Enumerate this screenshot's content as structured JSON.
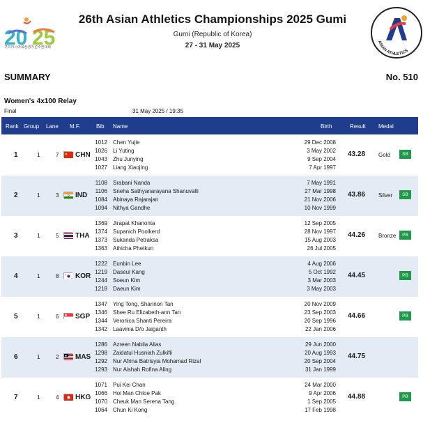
{
  "header": {
    "title": "26th Asian Athletics Championships 2025 Gumi",
    "venue": "Gumi (Republic of Korea)",
    "dates": "27 - 31 May 2025",
    "left_logo_caption": "구미아시아육상경기선수권대회",
    "right_logo_text": "ASIAN ATHLETICS"
  },
  "report": {
    "type": "SUMMARY",
    "number": "No. 510",
    "event": "Women's 4x100 Relay",
    "round": "Final",
    "datetime": "31 May 2025 / 19:35"
  },
  "columns": {
    "rank": "Rank",
    "group": "Group",
    "lane": "Lane",
    "mf": "M.F.",
    "bib": "Bib",
    "name": "Name",
    "birth": "Birth",
    "result": "Result",
    "medal": "Medal"
  },
  "rows": [
    {
      "rank": "1",
      "group": "1",
      "lane": "7",
      "noc": "CHN",
      "result": "43.28",
      "medal": "Gold",
      "badge": "SB",
      "athletes": [
        {
          "bib": "1012",
          "name": "Chen Yujie",
          "birth": "29 Dec 2008"
        },
        {
          "bib": "1026",
          "name": "Li Yuting",
          "birth": "3 May 2002"
        },
        {
          "bib": "1043",
          "name": "Zhu Junying",
          "birth": "9 Sep 2004"
        },
        {
          "bib": "1027",
          "name": "Liang Xiaojing",
          "birth": "7 Apr 1997"
        }
      ]
    },
    {
      "rank": "2",
      "group": "1",
      "lane": "3",
      "noc": "IND",
      "result": "43.86",
      "medal": "Silver",
      "badge": "SB",
      "athletes": [
        {
          "bib": "1108",
          "name": "Srabani Nanda",
          "birth": "7 May 1991"
        },
        {
          "bib": "1106",
          "name": "Sneha Sathyanarayana Shanuvalli",
          "birth": "27 Mar 1998"
        },
        {
          "bib": "1084",
          "name": "Abinaya Rajarajan",
          "birth": "21 Nov 2006"
        },
        {
          "bib": "1094",
          "name": "Nithya Gandhe",
          "birth": "10 Nov 1999"
        }
      ]
    },
    {
      "rank": "3",
      "group": "1",
      "lane": "5",
      "noc": "THA",
      "result": "44.26",
      "medal": "Bronze",
      "badge": "PB",
      "athletes": [
        {
          "bib": "1369",
          "name": "Jirapat Khanonta",
          "birth": "12 Sep 2005"
        },
        {
          "bib": "1374",
          "name": "Supanich Poolkerd",
          "birth": "28 Nov 1997"
        },
        {
          "bib": "1373",
          "name": "Sukanda Petraksa",
          "birth": "15 Aug 2003"
        },
        {
          "bib": "1363",
          "name": "Athicha Phetkun",
          "birth": "26 Jul 2005"
        }
      ]
    },
    {
      "rank": "4",
      "group": "1",
      "lane": "8",
      "noc": "KOR",
      "result": "44.45",
      "medal": "",
      "badge": "PB",
      "athletes": [
        {
          "bib": "1222",
          "name": "Eunbin Lee",
          "birth": "4 Aug 2006"
        },
        {
          "bib": "1219",
          "name": "Daseul Kang",
          "birth": "5 Oct 1992"
        },
        {
          "bib": "1244",
          "name": "Soeun Kim",
          "birth": "3 Mar 2003"
        },
        {
          "bib": "1218",
          "name": "Daeun Kim",
          "birth": "3 May 2003"
        }
      ]
    },
    {
      "rank": "5",
      "group": "1",
      "lane": "6",
      "noc": "SGP",
      "result": "44.66",
      "medal": "",
      "badge": "PB",
      "athletes": [
        {
          "bib": "1347",
          "name": "Ying Tong, Shannon Tan",
          "birth": "20 Nov 2009"
        },
        {
          "bib": "1346",
          "name": "Shee Ru Elizabeth-ann Tan",
          "birth": "23 Sep 2003"
        },
        {
          "bib": "1344",
          "name": "Veronica Shanti Pereira",
          "birth": "20 Sep 1996"
        },
        {
          "bib": "1342",
          "name": "Laavinia D/o Jaiganth",
          "birth": "22 Jan 2006"
        }
      ]
    },
    {
      "rank": "6",
      "group": "1",
      "lane": "2",
      "noc": "MAS",
      "result": "44.75",
      "medal": "",
      "badge": "",
      "athletes": [
        {
          "bib": "1286",
          "name": "Azreen Nabila Alias",
          "birth": "29 Jun 2000"
        },
        {
          "bib": "1298",
          "name": "Zaidatul Husniah Zulkifli",
          "birth": "20 Aug 1993"
        },
        {
          "bib": "1292",
          "name": "Nur Afrina Batrisyia Mohamad Rizal",
          "birth": "20 Sep 2004"
        },
        {
          "bib": "1293",
          "name": "Nur Aishah Rofina Aling",
          "birth": "31 Jan 1999"
        }
      ]
    },
    {
      "rank": "7",
      "group": "1",
      "lane": "4",
      "noc": "HKG",
      "result": "44.88",
      "medal": "",
      "badge": "PB",
      "athletes": [
        {
          "bib": "1071",
          "name": "Pui Kei Chan",
          "birth": "24 Mar 2000"
        },
        {
          "bib": "1066",
          "name": "Hoi Man Chloe Pak",
          "birth": "9 Apr 2006"
        },
        {
          "bib": "1070",
          "name": "Cheuk Man Serena Tang",
          "birth": "1 Sep 2005"
        },
        {
          "bib": "1064",
          "name": "Chun Ki Kong",
          "birth": "17 Feb 1998"
        }
      ]
    }
  ],
  "colors": {
    "header_bg": "#1f3d8c",
    "row_alt_bg": "#e4ebf4",
    "badge_bg": "#1f9a4a"
  }
}
